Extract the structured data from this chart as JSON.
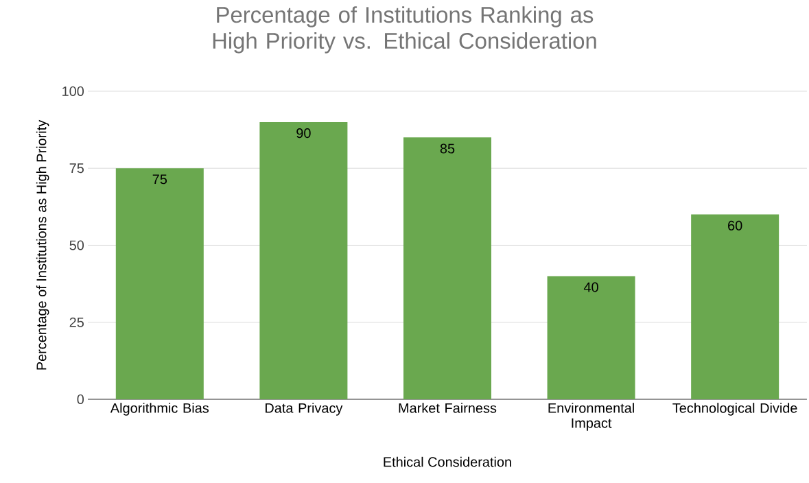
{
  "chart_data": {
    "type": "bar",
    "title": "Percentage of Institutions Ranking as High Priority vs. Ethical Consideration",
    "xlabel": "Ethical Consideration",
    "ylabel": "Percentage of Institutions as High Priority",
    "categories": [
      "Algorithmic Bias",
      "Data Privacy",
      "Market Fairness",
      "Environmental Impact",
      "Technological Divide"
    ],
    "values": [
      75,
      90,
      85,
      40,
      60
    ],
    "color": "#6aa84f",
    "ylim": [
      0,
      100
    ],
    "yticks": [
      0,
      25,
      50,
      75,
      100
    ],
    "grid": "y",
    "data_labels": true
  }
}
